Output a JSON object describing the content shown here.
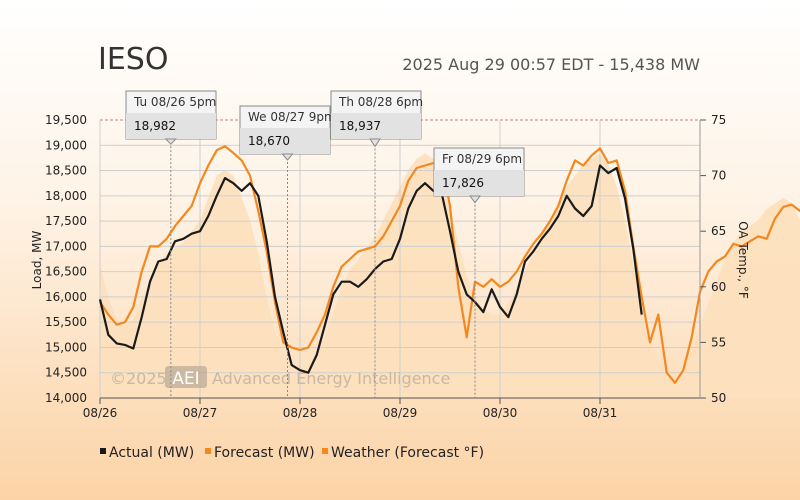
{
  "header": {
    "title": "IESO",
    "subtitle": "2025 Aug 29 00:57 EDT - 15,438 MW"
  },
  "watermark": {
    "prefix": "©2025",
    "logo": "AEI",
    "text": "Advanced Energy Intelligence"
  },
  "colors": {
    "actual": "#1a1a1a",
    "forecast": "#f5871f",
    "weather_fill": "#fde0bd",
    "grid": "#cfcfcf",
    "highlight_tip": "#cc0000"
  },
  "chart_data": {
    "type": "line",
    "xlabel": "",
    "ylabel": "Load, MW",
    "y2label": "OA Temp., °F",
    "ylim": [
      14000,
      19500
    ],
    "y2lim": [
      50,
      75
    ],
    "yticks": [
      "14,000",
      "14,500",
      "15,000",
      "15,500",
      "16,000",
      "16,500",
      "17,000",
      "17,500",
      "18,000",
      "18,500",
      "19,000",
      "19,500"
    ],
    "y2ticks": [
      "50",
      "55",
      "60",
      "65",
      "70",
      "75"
    ],
    "xticks": [
      "08/26",
      "08/27",
      "08/28",
      "08/29",
      "08/30",
      "08/31"
    ],
    "grid": true,
    "legend_position": "bottom-left",
    "x_unit": "hours since 08/26 00:00",
    "series": [
      {
        "name": "Actual (MW)",
        "type": "line",
        "axis": "left",
        "points": [
          [
            0,
            15950
          ],
          [
            2,
            15250
          ],
          [
            4,
            15080
          ],
          [
            6,
            15050
          ],
          [
            8,
            14980
          ],
          [
            10,
            15600
          ],
          [
            12,
            16300
          ],
          [
            14,
            16700
          ],
          [
            16,
            16750
          ],
          [
            18,
            17100
          ],
          [
            20,
            17150
          ],
          [
            22,
            17250
          ],
          [
            24,
            17300
          ],
          [
            26,
            17600
          ],
          [
            28,
            18000
          ],
          [
            30,
            18350
          ],
          [
            32,
            18250
          ],
          [
            34,
            18100
          ],
          [
            36,
            18250
          ],
          [
            38,
            18000
          ],
          [
            40,
            17100
          ],
          [
            42,
            16000
          ],
          [
            44,
            15300
          ],
          [
            46,
            14650
          ],
          [
            48,
            14550
          ],
          [
            50,
            14500
          ],
          [
            52,
            14850
          ],
          [
            54,
            15450
          ],
          [
            56,
            16050
          ],
          [
            58,
            16300
          ],
          [
            60,
            16300
          ],
          [
            62,
            16200
          ],
          [
            64,
            16350
          ],
          [
            66,
            16550
          ],
          [
            68,
            16700
          ],
          [
            70,
            16750
          ],
          [
            72,
            17150
          ],
          [
            74,
            17750
          ],
          [
            76,
            18100
          ],
          [
            78,
            18250
          ],
          [
            80,
            18100
          ],
          [
            82,
            18050
          ],
          [
            84,
            17300
          ],
          [
            86,
            16500
          ],
          [
            88,
            16050
          ],
          [
            90,
            15900
          ],
          [
            92,
            15700
          ],
          [
            94,
            16150
          ],
          [
            96,
            15800
          ],
          [
            98,
            15600
          ],
          [
            100,
            16050
          ],
          [
            102,
            16700
          ],
          [
            104,
            16900
          ],
          [
            106,
            17150
          ],
          [
            108,
            17350
          ],
          [
            110,
            17600
          ],
          [
            112,
            18000
          ],
          [
            114,
            17750
          ],
          [
            116,
            17600
          ],
          [
            118,
            17800
          ],
          [
            120,
            18600
          ],
          [
            122,
            18450
          ],
          [
            124,
            18550
          ],
          [
            126,
            17950
          ],
          [
            128,
            16950
          ],
          [
            130,
            15650
          ]
        ]
      },
      {
        "name": "Forecast (MW)",
        "type": "line",
        "axis": "left",
        "points": [
          [
            0,
            15900
          ],
          [
            2,
            15650
          ],
          [
            4,
            15450
          ],
          [
            6,
            15500
          ],
          [
            8,
            15800
          ],
          [
            10,
            16500
          ],
          [
            12,
            17000
          ],
          [
            14,
            17000
          ],
          [
            16,
            17150
          ],
          [
            18,
            17400
          ],
          [
            20,
            17600
          ],
          [
            22,
            17800
          ],
          [
            24,
            18250
          ],
          [
            26,
            18600
          ],
          [
            28,
            18900
          ],
          [
            30,
            18980
          ],
          [
            32,
            18850
          ],
          [
            34,
            18700
          ],
          [
            36,
            18400
          ],
          [
            38,
            17700
          ],
          [
            40,
            16900
          ],
          [
            42,
            15900
          ],
          [
            44,
            15100
          ],
          [
            46,
            15000
          ],
          [
            48,
            14950
          ],
          [
            50,
            15000
          ],
          [
            52,
            15300
          ],
          [
            54,
            15650
          ],
          [
            56,
            16200
          ],
          [
            58,
            16600
          ],
          [
            60,
            16750
          ],
          [
            62,
            16900
          ],
          [
            64,
            16950
          ],
          [
            66,
            17000
          ],
          [
            68,
            17200
          ],
          [
            70,
            17500
          ],
          [
            72,
            17800
          ],
          [
            74,
            18300
          ],
          [
            76,
            18550
          ],
          [
            78,
            18600
          ],
          [
            80,
            18650
          ],
          [
            82,
            18670
          ],
          [
            84,
            17800
          ],
          [
            86,
            16200
          ],
          [
            88,
            15200
          ],
          [
            90,
            16300
          ],
          [
            92,
            16200
          ],
          [
            94,
            16350
          ],
          [
            96,
            16200
          ],
          [
            98,
            16300
          ],
          [
            100,
            16500
          ],
          [
            102,
            16800
          ],
          [
            104,
            17050
          ],
          [
            106,
            17250
          ],
          [
            108,
            17500
          ],
          [
            110,
            17800
          ],
          [
            112,
            18300
          ],
          [
            114,
            18700
          ],
          [
            116,
            18600
          ],
          [
            118,
            18800
          ],
          [
            120,
            18940
          ],
          [
            122,
            18650
          ],
          [
            124,
            18700
          ],
          [
            126,
            18100
          ],
          [
            128,
            17000
          ],
          [
            130,
            16000
          ],
          [
            132,
            15100
          ],
          [
            134,
            15650
          ],
          [
            136,
            14500
          ],
          [
            138,
            14300
          ],
          [
            140,
            14550
          ],
          [
            142,
            15200
          ],
          [
            144,
            16100
          ],
          [
            146,
            16500
          ],
          [
            148,
            16700
          ],
          [
            150,
            16800
          ],
          [
            152,
            17050
          ],
          [
            154,
            17000
          ],
          [
            156,
            17100
          ],
          [
            158,
            17200
          ],
          [
            160,
            17150
          ],
          [
            162,
            17550
          ],
          [
            164,
            17780
          ],
          [
            166,
            17826
          ],
          [
            168,
            17700
          ],
          [
            170,
            17650
          ],
          [
            172,
            17100
          ],
          [
            174,
            16200
          ],
          [
            176,
            15200
          ],
          [
            178,
            14550
          ]
        ]
      },
      {
        "name": "Weather (Forecast °F)",
        "type": "area",
        "axis": "right",
        "points": [
          [
            0,
            62
          ],
          [
            2,
            59
          ],
          [
            4,
            57
          ],
          [
            6,
            56.5
          ],
          [
            8,
            57
          ],
          [
            10,
            59
          ],
          [
            12,
            60.5
          ],
          [
            14,
            62
          ],
          [
            16,
            63
          ],
          [
            18,
            63.5
          ],
          [
            20,
            64
          ],
          [
            22,
            65
          ],
          [
            24,
            66
          ],
          [
            26,
            68
          ],
          [
            28,
            70
          ],
          [
            30,
            70.5
          ],
          [
            32,
            70
          ],
          [
            34,
            68
          ],
          [
            36,
            66
          ],
          [
            38,
            63
          ],
          [
            40,
            59
          ],
          [
            42,
            56
          ],
          [
            44,
            54
          ],
          [
            46,
            53
          ],
          [
            48,
            52.5
          ],
          [
            50,
            53
          ],
          [
            52,
            54
          ],
          [
            54,
            55.5
          ],
          [
            56,
            57.5
          ],
          [
            58,
            60
          ],
          [
            60,
            61.5
          ],
          [
            62,
            62.5
          ],
          [
            64,
            63.5
          ],
          [
            66,
            64.5
          ],
          [
            68,
            66
          ],
          [
            70,
            67.5
          ],
          [
            72,
            69
          ],
          [
            74,
            70.5
          ],
          [
            76,
            71.5
          ],
          [
            78,
            72
          ],
          [
            80,
            71.5
          ],
          [
            82,
            70
          ],
          [
            84,
            67
          ],
          [
            86,
            64
          ],
          [
            88,
            61
          ],
          [
            90,
            59
          ],
          [
            92,
            58
          ],
          [
            94,
            57.5
          ],
          [
            96,
            57.5
          ],
          [
            98,
            58.5
          ],
          [
            100,
            60
          ],
          [
            102,
            61.5
          ],
          [
            104,
            63
          ],
          [
            106,
            64.5
          ],
          [
            108,
            66
          ],
          [
            110,
            67.5
          ],
          [
            112,
            69
          ],
          [
            114,
            70
          ],
          [
            116,
            71
          ],
          [
            118,
            71.5
          ],
          [
            120,
            72
          ],
          [
            122,
            71
          ],
          [
            124,
            69
          ],
          [
            126,
            66
          ],
          [
            128,
            62
          ],
          [
            130,
            58
          ],
          [
            132,
            55
          ],
          [
            134,
            53.5
          ],
          [
            136,
            53
          ],
          [
            138,
            52.5
          ],
          [
            140,
            53
          ],
          [
            142,
            54.5
          ],
          [
            144,
            56.5
          ],
          [
            146,
            58.5
          ],
          [
            148,
            60.5
          ],
          [
            150,
            62.5
          ],
          [
            152,
            64
          ],
          [
            154,
            65
          ],
          [
            156,
            65.5
          ],
          [
            158,
            66
          ],
          [
            160,
            67
          ],
          [
            162,
            67.5
          ],
          [
            164,
            68
          ],
          [
            166,
            67.5
          ],
          [
            168,
            66
          ],
          [
            170,
            64
          ],
          [
            172,
            61.5
          ],
          [
            174,
            58.5
          ],
          [
            176,
            56.5
          ],
          [
            178,
            55.5
          ],
          [
            180,
            55.5
          ],
          [
            182,
            55
          ],
          [
            184,
            55
          ],
          [
            186,
            55
          ],
          [
            188,
            55.5
          ],
          [
            190,
            57
          ],
          [
            192,
            59.5
          ],
          [
            194,
            62
          ],
          [
            196,
            65
          ],
          [
            198,
            67.5
          ],
          [
            200,
            69.5
          ],
          [
            202,
            70.5
          ],
          [
            204,
            71
          ],
          [
            206,
            71.5
          ],
          [
            208,
            72
          ],
          [
            210,
            71.5
          ],
          [
            212,
            69.5
          ],
          [
            214,
            66.5
          ],
          [
            216,
            63.5
          ],
          [
            218,
            61
          ],
          [
            220,
            59.5
          ],
          [
            222,
            59
          ],
          [
            224,
            59
          ],
          [
            226,
            59
          ],
          [
            228,
            59
          ],
          [
            230,
            59
          ],
          [
            232,
            59
          ],
          [
            234,
            59
          ],
          [
            236,
            59
          ],
          [
            238,
            59.5
          ],
          [
            240,
            62
          ],
          [
            242,
            65.5
          ],
          [
            244,
            68
          ],
          [
            246,
            70
          ],
          [
            248,
            71.5
          ],
          [
            250,
            72.5
          ],
          [
            252,
            73.5
          ],
          [
            254,
            73.5
          ],
          [
            256,
            72.5
          ],
          [
            258,
            71.5
          ],
          [
            260,
            70.5
          ],
          [
            262,
            70
          ]
        ]
      }
    ],
    "annotations": [
      {
        "date": "Tu 08/26 5pm",
        "value": "18,982",
        "x": 17,
        "y": 18982
      },
      {
        "date": "We 08/27 9pm",
        "value": "18,670",
        "x": 45,
        "y": 18670
      },
      {
        "date": "Th 08/28 6pm",
        "value": "18,937",
        "x": 66,
        "y": 18937
      },
      {
        "date": "Fr 08/29 6pm",
        "value": "17,826",
        "x": 90,
        "y": 17826
      }
    ]
  },
  "legend": {
    "items": [
      {
        "label": "Actual (MW)"
      },
      {
        "label": "Forecast (MW)"
      },
      {
        "label": "Weather (Forecast °F)"
      }
    ]
  }
}
